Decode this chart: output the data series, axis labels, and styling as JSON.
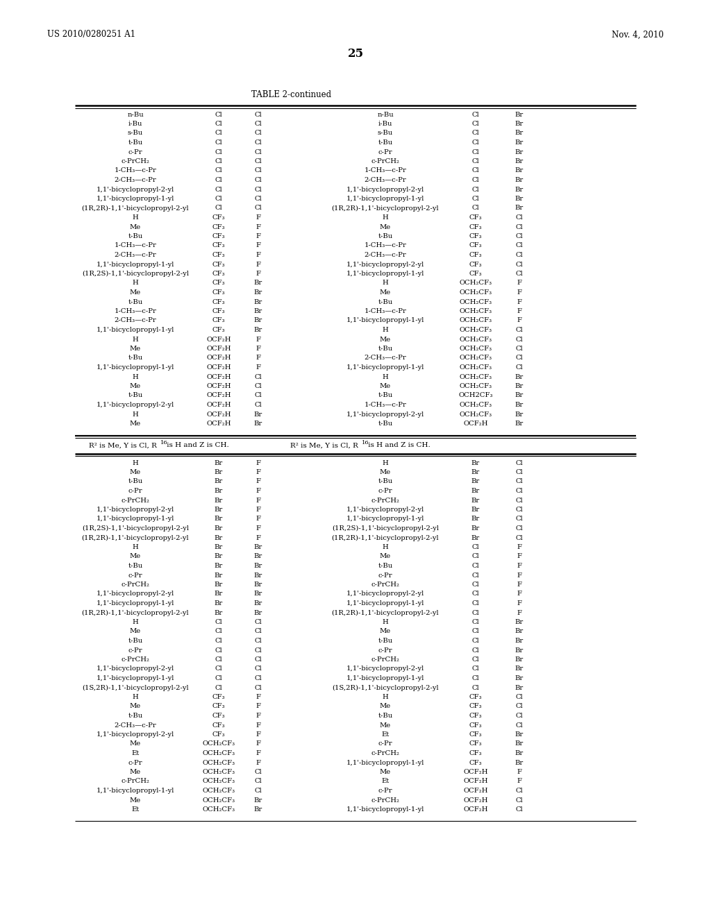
{
  "page_header_left": "US 2010/0280251 A1",
  "page_header_right": "Nov. 4, 2010",
  "page_number": "25",
  "table_title": "TABLE 2-continued",
  "bg_color": "#ffffff",
  "text_color": "#000000",
  "top_section_rows": [
    [
      "n-Bu",
      "Cl",
      "Cl",
      "n-Bu",
      "Cl",
      "Br"
    ],
    [
      "i-Bu",
      "Cl",
      "Cl",
      "i-Bu",
      "Cl",
      "Br"
    ],
    [
      "s-Bu",
      "Cl",
      "Cl",
      "s-Bu",
      "Cl",
      "Br"
    ],
    [
      "t-Bu",
      "Cl",
      "Cl",
      "t-Bu",
      "Cl",
      "Br"
    ],
    [
      "c-Pr",
      "Cl",
      "Cl",
      "c-Pr",
      "Cl",
      "Br"
    ],
    [
      "c-PrCH₂",
      "Cl",
      "Cl",
      "c-PrCH₂",
      "Cl",
      "Br"
    ],
    [
      "1-CH₃—c-Pr",
      "Cl",
      "Cl",
      "1-CH₃—c-Pr",
      "Cl",
      "Br"
    ],
    [
      "2-CH₃—c-Pr",
      "Cl",
      "Cl",
      "2-CH₃—c-Pr",
      "Cl",
      "Br"
    ],
    [
      "1,1'-bicyclopropyl-2-yl",
      "Cl",
      "Cl",
      "1,1'-bicyclopropyl-2-yl",
      "Cl",
      "Br"
    ],
    [
      "1,1'-bicyclopropyl-1-yl",
      "Cl",
      "Cl",
      "1,1'-bicyclopropyl-1-yl",
      "Cl",
      "Br"
    ],
    [
      "(1R,2R)-1,1'-bicyclopropyl-2-yl",
      "Cl",
      "Cl",
      "(1R,2R)-1,1'-bicyclopropyl-2-yl",
      "Cl",
      "Br"
    ],
    [
      "H",
      "CF₃",
      "F",
      "H",
      "CF₃",
      "Cl"
    ],
    [
      "Me",
      "CF₃",
      "F",
      "Me",
      "CF₃",
      "Cl"
    ],
    [
      "t-Bu",
      "CF₃",
      "F",
      "t-Bu",
      "CF₃",
      "Cl"
    ],
    [
      "1-CH₃—c-Pr",
      "CF₃",
      "F",
      "1-CH₃—c-Pr",
      "CF₃",
      "Cl"
    ],
    [
      "2-CH₃—c-Pr",
      "CF₃",
      "F",
      "2-CH₃—c-Pr",
      "CF₃",
      "Cl"
    ],
    [
      "1,1'-bicyclopropyl-1-yl",
      "CF₃",
      "F",
      "1,1'-bicyclopropyl-2-yl",
      "CF₃",
      "Cl"
    ],
    [
      "(1R,2S)-1,1'-bicyclopropyl-2-yl",
      "CF₃",
      "F",
      "1,1'-bicyclopropyl-1-yl",
      "CF₃",
      "Cl"
    ],
    [
      "H",
      "CF₃",
      "Br",
      "H",
      "OCH₂CF₃",
      "F"
    ],
    [
      "Me",
      "CF₃",
      "Br",
      "Me",
      "OCH₂CF₃",
      "F"
    ],
    [
      "t-Bu",
      "CF₃",
      "Br",
      "t-Bu",
      "OCH₂CF₃",
      "F"
    ],
    [
      "1-CH₃—c-Pr",
      "CF₃",
      "Br",
      "1-CH₃—c-Pr",
      "OCH₂CF₃",
      "F"
    ],
    [
      "2-CH₃—c-Pr",
      "CF₃",
      "Br",
      "1,1'-bicyclopropyl-1-yl",
      "OCH₂CF₃",
      "F"
    ],
    [
      "1,1'-bicyclopropyl-1-yl",
      "CF₃",
      "Br",
      "H",
      "OCH₂CF₃",
      "Cl"
    ],
    [
      "H",
      "OCF₂H",
      "F",
      "Me",
      "OCH₂CF₃",
      "Cl"
    ],
    [
      "Me",
      "OCF₂H",
      "F",
      "t-Bu",
      "OCH₂CF₃",
      "Cl"
    ],
    [
      "t-Bu",
      "OCF₂H",
      "F",
      "2-CH₃—c-Pr",
      "OCH₂CF₃",
      "Cl"
    ],
    [
      "1,1'-bicyclopropyl-1-yl",
      "OCF₂H",
      "F",
      "1,1'-bicyclopropyl-1-yl",
      "OCH₂CF₃",
      "Cl"
    ],
    [
      "H",
      "OCF₂H",
      "Cl",
      "H",
      "OCH₂CF₃",
      "Br"
    ],
    [
      "Me",
      "OCF₂H",
      "Cl",
      "Me",
      "OCH₂CF₃",
      "Br"
    ],
    [
      "t-Bu",
      "OCF₂H",
      "Cl",
      "t-Bu",
      "OCH2CF₃",
      "Br"
    ],
    [
      "1,1'-bicyclopropyl-2-yl",
      "OCF₂H",
      "Cl",
      "1-CH₃—c-Pr",
      "OCH₂CF₃",
      "Br"
    ],
    [
      "H",
      "OCF₂H",
      "Br",
      "1,1'-bicyclopropyl-2-yl",
      "OCH₂CF₃",
      "Br"
    ],
    [
      "Me",
      "OCF₂H",
      "Br",
      "t-Bu",
      "OCF₂H",
      "Br"
    ]
  ],
  "bottom_section_rows": [
    [
      "H",
      "Br",
      "F",
      "H",
      "Br",
      "Cl"
    ],
    [
      "Me",
      "Br",
      "F",
      "Me",
      "Br",
      "Cl"
    ],
    [
      "t-Bu",
      "Br",
      "F",
      "t-Bu",
      "Br",
      "Cl"
    ],
    [
      "c-Pr",
      "Br",
      "F",
      "c-Pr",
      "Br",
      "Cl"
    ],
    [
      "c-PrCH₂",
      "Br",
      "F",
      "c-PrCH₂",
      "Br",
      "Cl"
    ],
    [
      "1,1'-bicyclopropyl-2-yl",
      "Br",
      "F",
      "1,1'-bicyclopropyl-2-yl",
      "Br",
      "Cl"
    ],
    [
      "1,1'-bicyclopropyl-1-yl",
      "Br",
      "F",
      "1,1'-bicyclopropyl-1-yl",
      "Br",
      "Cl"
    ],
    [
      "(1R,2S)-1,1'-bicyclopropyl-2-yl",
      "Br",
      "F",
      "(1R,2S)-1,1'-bicyclopropyl-2-yl",
      "Br",
      "Cl"
    ],
    [
      "(1R,2R)-1,1'-bicyclopropyl-2-yl",
      "Br",
      "F",
      "(1R,2R)-1,1'-bicyclopropyl-2-yl",
      "Br",
      "Cl"
    ],
    [
      "H",
      "Br",
      "Br",
      "H",
      "Cl",
      "F"
    ],
    [
      "Me",
      "Br",
      "Br",
      "Me",
      "Cl",
      "F"
    ],
    [
      "t-Bu",
      "Br",
      "Br",
      "t-Bu",
      "Cl",
      "F"
    ],
    [
      "c-Pr",
      "Br",
      "Br",
      "c-Pr",
      "Cl",
      "F"
    ],
    [
      "c-PrCH₂",
      "Br",
      "Br",
      "c-PrCH₂",
      "Cl",
      "F"
    ],
    [
      "1,1'-bicyclopropyl-2-yl",
      "Br",
      "Br",
      "1,1'-bicyclopropyl-2-yl",
      "Cl",
      "F"
    ],
    [
      "1,1'-bicyclopropyl-1-yl",
      "Br",
      "Br",
      "1,1'-bicyclopropyl-1-yl",
      "Cl",
      "F"
    ],
    [
      "(1R,2R)-1,1'-bicyclopropyl-2-yl",
      "Br",
      "Br",
      "(1R,2R)-1,1'-bicyclopropyl-2-yl",
      "Cl",
      "F"
    ],
    [
      "H",
      "Cl",
      "Cl",
      "H",
      "Cl",
      "Br"
    ],
    [
      "Me",
      "Cl",
      "Cl",
      "Me",
      "Cl",
      "Br"
    ],
    [
      "t-Bu",
      "Cl",
      "Cl",
      "t-Bu",
      "Cl",
      "Br"
    ],
    [
      "c-Pr",
      "Cl",
      "Cl",
      "c-Pr",
      "Cl",
      "Br"
    ],
    [
      "c-PrCH₂",
      "Cl",
      "Cl",
      "c-PrCH₂",
      "Cl",
      "Br"
    ],
    [
      "1,1'-bicyclopropyl-2-yl",
      "Cl",
      "Cl",
      "1,1'-bicyclopropyl-2-yl",
      "Cl",
      "Br"
    ],
    [
      "1,1'-bicyclopropyl-1-yl",
      "Cl",
      "Cl",
      "1,1'-bicyclopropyl-1-yl",
      "Cl",
      "Br"
    ],
    [
      "(1S,2R)-1,1'-bicyclopropyl-2-yl",
      "Cl",
      "Cl",
      "(1S,2R)-1,1'-bicyclopropyl-2-yl",
      "Cl",
      "Br"
    ],
    [
      "H",
      "CF₃",
      "F",
      "H",
      "CF₃",
      "Cl"
    ],
    [
      "Me",
      "CF₃",
      "F",
      "Me",
      "CF₃",
      "Cl"
    ],
    [
      "t-Bu",
      "CF₃",
      "F",
      "t-Bu",
      "CF₃",
      "Cl"
    ],
    [
      "2-CH₃—c-Pr",
      "CF₃",
      "F",
      "Me",
      "CF₃",
      "Cl"
    ],
    [
      "1,1'-bicyclopropyl-2-yl",
      "CF₃",
      "F",
      "Et",
      "CF₃",
      "Br"
    ],
    [
      "Me",
      "OCH₂CF₃",
      "F",
      "c-Pr",
      "CF₃",
      "Br"
    ],
    [
      "Et",
      "OCH₂CF₃",
      "F",
      "c-PrCH₂",
      "CF₃",
      "Br"
    ],
    [
      "c-Pr",
      "OCH₂CF₃",
      "F",
      "1,1'-bicyclopropyl-1-yl",
      "CF₃",
      "Br"
    ],
    [
      "Me",
      "OCH₂CF₃",
      "Cl",
      "Me",
      "OCF₂H",
      "F"
    ],
    [
      "c-PrCH₂",
      "OCH₂CF₃",
      "Cl",
      "Et",
      "OCF₂H",
      "F"
    ],
    [
      "1,1'-bicyclopropyl-1-yl",
      "OCH₂CF₃",
      "Cl",
      "c-Pr",
      "OCF₂H",
      "Cl"
    ],
    [
      "Me",
      "OCH₂CF₃",
      "Br",
      "c-PrCH₂",
      "OCF₂H",
      "Cl"
    ],
    [
      "Et",
      "OCH₂CF₃",
      "Br",
      "1,1'-bicyclopropyl-1-yl",
      "OCF₂H",
      "Cl"
    ]
  ]
}
